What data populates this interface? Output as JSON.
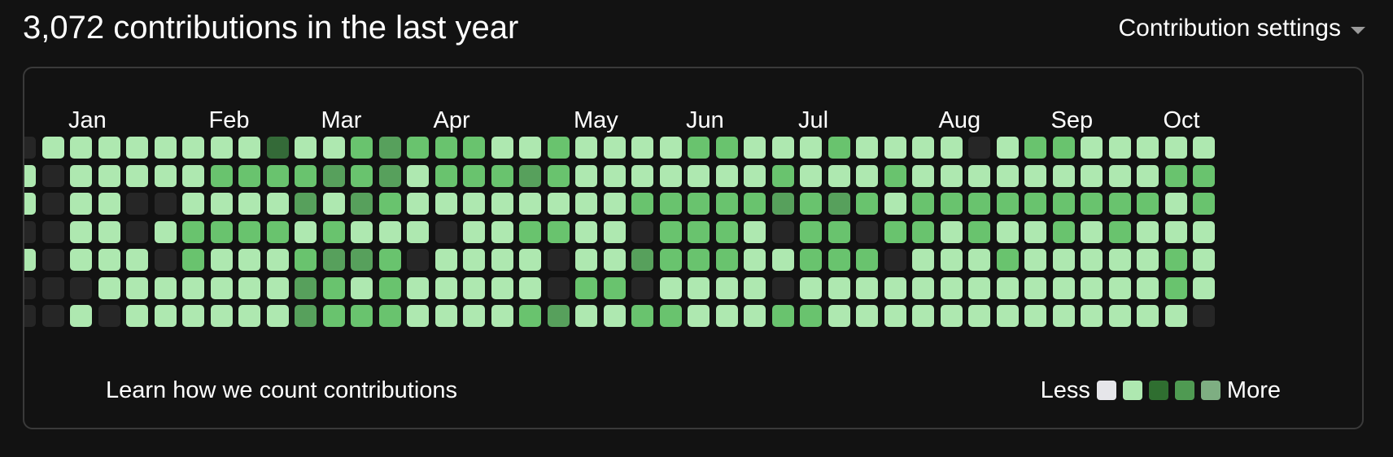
{
  "header": {
    "title": "3,072 contributions in the last year",
    "settings_label": "Contribution settings",
    "settings_icon": "caret-down-icon"
  },
  "calendar": {
    "months": [
      {
        "label": "Jan",
        "week": 2
      },
      {
        "label": "Feb",
        "week": 7
      },
      {
        "label": "Mar",
        "week": 11
      },
      {
        "label": "Apr",
        "week": 15
      },
      {
        "label": "May",
        "week": 20
      },
      {
        "label": "Jun",
        "week": 24
      },
      {
        "label": "Jul",
        "week": 28
      },
      {
        "label": "Aug",
        "week": 33
      },
      {
        "label": "Sep",
        "week": 37
      },
      {
        "label": "Oct",
        "week": 41
      }
    ],
    "levels": [
      "#262626",
      "#aee8b0",
      "#69c36e",
      "#57a05c",
      "#346a38"
    ],
    "grid": [
      "0111111114112322211211112211121111012211111",
      "1011111222232312223211111112111211111111122",
      "1011001111313211111111222223232122222222212",
      "0011012222121110112211022210220221211212111",
      "1011102111233201111011322211222011121111121",
      "0001111111321211111022011110111111111111121",
      "0010111111322211112311221112211111111111110"
    ],
    "learn_link": "Learn how we count contributions",
    "legend": {
      "less_label": "Less",
      "more_label": "More",
      "swatches": [
        "#e6e6ea",
        "#aee8b0",
        "#2f6e30",
        "#4f9a52",
        "#7eae82"
      ]
    }
  }
}
